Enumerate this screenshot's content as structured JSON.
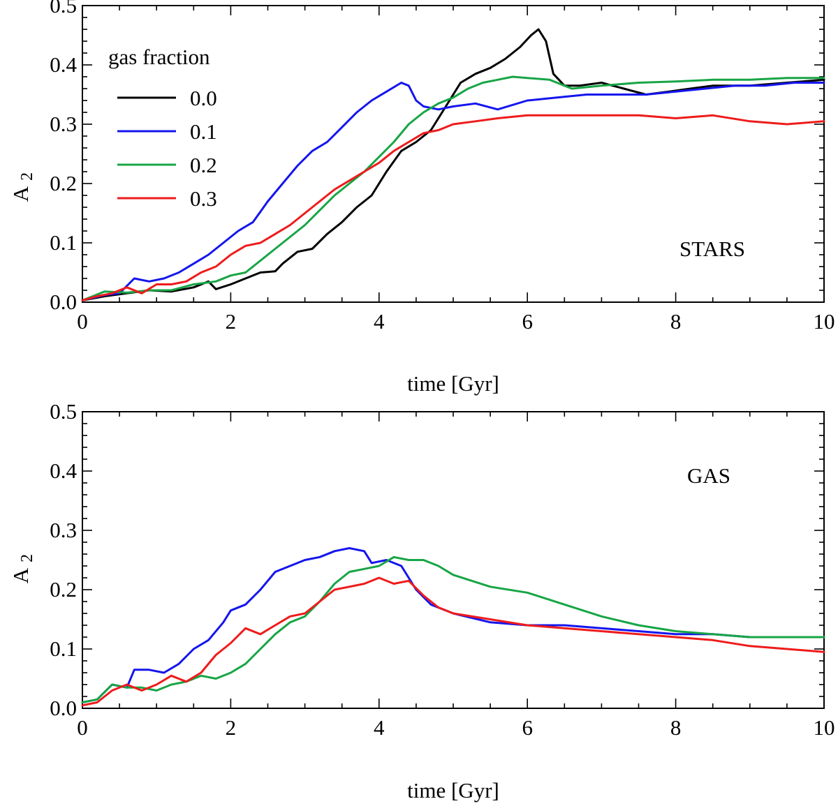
{
  "chart_data": [
    {
      "type": "line",
      "panel_label": "STARS",
      "xlabel": "time [Gyr]",
      "ylabel_main": "A",
      "ylabel_sub": "2",
      "xlim": [
        0,
        10
      ],
      "ylim": [
        0,
        0.5
      ],
      "x_ticks": [
        "0",
        "2",
        "4",
        "6",
        "8",
        "10"
      ],
      "y_ticks": [
        "0.0",
        "0.1",
        "0.2",
        "0.3",
        "0.4",
        "0.5"
      ],
      "legend": {
        "title": "gas fraction",
        "position": "top-left",
        "entries": [
          "0.0",
          "0.1",
          "0.2",
          "0.3"
        ]
      },
      "series": [
        {
          "name": "0.0",
          "color": "#000000",
          "x": [
            0,
            0.3,
            0.6,
            0.9,
            1.2,
            1.5,
            1.7,
            1.8,
            2.0,
            2.2,
            2.4,
            2.6,
            2.7,
            2.9,
            3.1,
            3.3,
            3.5,
            3.7,
            3.9,
            4.1,
            4.3,
            4.5,
            4.7,
            4.9,
            5.1,
            5.3,
            5.5,
            5.7,
            5.9,
            6.05,
            6.15,
            6.25,
            6.35,
            6.5,
            6.7,
            7.0,
            7.3,
            7.6,
            7.9,
            8.2,
            8.5,
            9.0,
            9.5,
            10.0
          ],
          "values": [
            0.003,
            0.01,
            0.015,
            0.02,
            0.018,
            0.025,
            0.035,
            0.022,
            0.03,
            0.04,
            0.05,
            0.052,
            0.065,
            0.085,
            0.09,
            0.115,
            0.135,
            0.16,
            0.18,
            0.22,
            0.255,
            0.27,
            0.29,
            0.33,
            0.37,
            0.385,
            0.395,
            0.41,
            0.43,
            0.45,
            0.46,
            0.44,
            0.385,
            0.365,
            0.365,
            0.37,
            0.36,
            0.35,
            0.355,
            0.36,
            0.365,
            0.365,
            0.37,
            0.375
          ]
        },
        {
          "name": "0.1",
          "color": "#1515ee",
          "x": [
            0,
            0.3,
            0.5,
            0.7,
            0.9,
            1.1,
            1.3,
            1.5,
            1.7,
            1.9,
            2.1,
            2.3,
            2.5,
            2.7,
            2.9,
            3.1,
            3.3,
            3.5,
            3.7,
            3.9,
            4.1,
            4.3,
            4.4,
            4.5,
            4.6,
            4.8,
            5.0,
            5.3,
            5.6,
            6.0,
            6.4,
            6.8,
            7.2,
            7.6,
            8.0,
            8.4,
            8.8,
            9.2,
            9.6,
            10.0
          ],
          "values": [
            0.003,
            0.012,
            0.015,
            0.04,
            0.035,
            0.04,
            0.05,
            0.065,
            0.08,
            0.1,
            0.12,
            0.135,
            0.17,
            0.2,
            0.23,
            0.255,
            0.27,
            0.295,
            0.32,
            0.34,
            0.355,
            0.37,
            0.365,
            0.34,
            0.33,
            0.325,
            0.33,
            0.335,
            0.325,
            0.34,
            0.345,
            0.35,
            0.35,
            0.35,
            0.355,
            0.36,
            0.365,
            0.365,
            0.37,
            0.37
          ]
        },
        {
          "name": "0.2",
          "color": "#17a545",
          "x": [
            0,
            0.3,
            0.6,
            0.9,
            1.2,
            1.5,
            1.8,
            2.0,
            2.2,
            2.4,
            2.6,
            2.8,
            3.0,
            3.2,
            3.4,
            3.6,
            3.8,
            4.0,
            4.2,
            4.4,
            4.6,
            4.8,
            5.0,
            5.2,
            5.4,
            5.6,
            5.8,
            6.0,
            6.3,
            6.6,
            7.0,
            7.5,
            8.0,
            8.5,
            9.0,
            9.5,
            10.0
          ],
          "values": [
            0.003,
            0.018,
            0.016,
            0.02,
            0.02,
            0.03,
            0.035,
            0.045,
            0.05,
            0.07,
            0.09,
            0.11,
            0.13,
            0.155,
            0.18,
            0.2,
            0.22,
            0.245,
            0.27,
            0.3,
            0.32,
            0.335,
            0.345,
            0.36,
            0.37,
            0.375,
            0.38,
            0.378,
            0.375,
            0.36,
            0.365,
            0.37,
            0.372,
            0.375,
            0.375,
            0.378,
            0.378
          ]
        },
        {
          "name": "0.3",
          "color": "#ee1b1b",
          "x": [
            0,
            0.2,
            0.4,
            0.6,
            0.8,
            1.0,
            1.2,
            1.4,
            1.6,
            1.8,
            2.0,
            2.2,
            2.4,
            2.6,
            2.8,
            3.0,
            3.2,
            3.4,
            3.6,
            3.8,
            4.0,
            4.2,
            4.4,
            4.6,
            4.8,
            5.0,
            5.3,
            5.6,
            6.0,
            6.5,
            7.0,
            7.5,
            8.0,
            8.5,
            9.0,
            9.5,
            10.0
          ],
          "values": [
            0.003,
            0.01,
            0.015,
            0.025,
            0.015,
            0.03,
            0.03,
            0.035,
            0.05,
            0.06,
            0.08,
            0.095,
            0.1,
            0.115,
            0.13,
            0.15,
            0.17,
            0.19,
            0.205,
            0.22,
            0.235,
            0.255,
            0.27,
            0.285,
            0.29,
            0.3,
            0.305,
            0.31,
            0.315,
            0.315,
            0.315,
            0.315,
            0.31,
            0.315,
            0.305,
            0.3,
            0.305
          ]
        }
      ]
    },
    {
      "type": "line",
      "panel_label": "GAS",
      "xlabel": "time [Gyr]",
      "ylabel_main": "A",
      "ylabel_sub": "2",
      "xlim": [
        0,
        10
      ],
      "ylim": [
        0,
        0.5
      ],
      "x_ticks": [
        "0",
        "2",
        "4",
        "6",
        "8",
        "10"
      ],
      "y_ticks": [
        "0.0",
        "0.1",
        "0.2",
        "0.3",
        "0.4",
        "0.5"
      ],
      "series": [
        {
          "name": "0.1",
          "color": "#1515ee",
          "x": [
            0,
            0.2,
            0.4,
            0.6,
            0.7,
            0.9,
            1.1,
            1.3,
            1.5,
            1.7,
            1.9,
            2.0,
            2.2,
            2.4,
            2.6,
            2.8,
            3.0,
            3.2,
            3.4,
            3.6,
            3.8,
            3.9,
            4.1,
            4.3,
            4.5,
            4.7,
            5.0,
            5.5,
            6.0,
            6.5,
            7.0,
            7.5,
            8.0,
            8.5,
            9.0,
            9.5,
            10.0
          ],
          "values": [
            0.01,
            0.015,
            0.04,
            0.035,
            0.065,
            0.065,
            0.06,
            0.075,
            0.1,
            0.115,
            0.145,
            0.165,
            0.175,
            0.2,
            0.23,
            0.24,
            0.25,
            0.255,
            0.265,
            0.27,
            0.265,
            0.245,
            0.25,
            0.24,
            0.2,
            0.175,
            0.16,
            0.145,
            0.14,
            0.14,
            0.135,
            0.13,
            0.125,
            0.125,
            0.12,
            0.12,
            0.12
          ]
        },
        {
          "name": "0.2",
          "color": "#17a545",
          "x": [
            0,
            0.2,
            0.4,
            0.6,
            0.8,
            1.0,
            1.2,
            1.4,
            1.6,
            1.8,
            2.0,
            2.2,
            2.4,
            2.6,
            2.8,
            3.0,
            3.2,
            3.4,
            3.6,
            3.8,
            4.0,
            4.2,
            4.4,
            4.6,
            4.8,
            5.0,
            5.5,
            6.0,
            6.5,
            7.0,
            7.5,
            8.0,
            8.5,
            9.0,
            9.5,
            10.0
          ],
          "values": [
            0.01,
            0.015,
            0.04,
            0.035,
            0.035,
            0.03,
            0.04,
            0.045,
            0.055,
            0.05,
            0.06,
            0.075,
            0.1,
            0.125,
            0.145,
            0.155,
            0.18,
            0.21,
            0.23,
            0.235,
            0.24,
            0.255,
            0.25,
            0.25,
            0.24,
            0.225,
            0.205,
            0.195,
            0.175,
            0.155,
            0.14,
            0.13,
            0.125,
            0.12,
            0.12,
            0.12
          ]
        },
        {
          "name": "0.3",
          "color": "#ee1b1b",
          "x": [
            0,
            0.2,
            0.4,
            0.6,
            0.8,
            1.0,
            1.2,
            1.4,
            1.6,
            1.8,
            2.0,
            2.2,
            2.4,
            2.6,
            2.8,
            3.0,
            3.2,
            3.4,
            3.6,
            3.8,
            4.0,
            4.2,
            4.4,
            4.6,
            4.8,
            5.0,
            5.5,
            6.0,
            6.5,
            7.0,
            7.5,
            8.0,
            8.5,
            9.0,
            9.5,
            10.0
          ],
          "values": [
            0.005,
            0.01,
            0.03,
            0.04,
            0.03,
            0.04,
            0.055,
            0.045,
            0.06,
            0.09,
            0.11,
            0.135,
            0.125,
            0.14,
            0.155,
            0.16,
            0.18,
            0.2,
            0.205,
            0.21,
            0.22,
            0.21,
            0.215,
            0.19,
            0.17,
            0.16,
            0.15,
            0.14,
            0.135,
            0.13,
            0.125,
            0.12,
            0.115,
            0.105,
            0.1,
            0.095
          ]
        }
      ]
    }
  ]
}
